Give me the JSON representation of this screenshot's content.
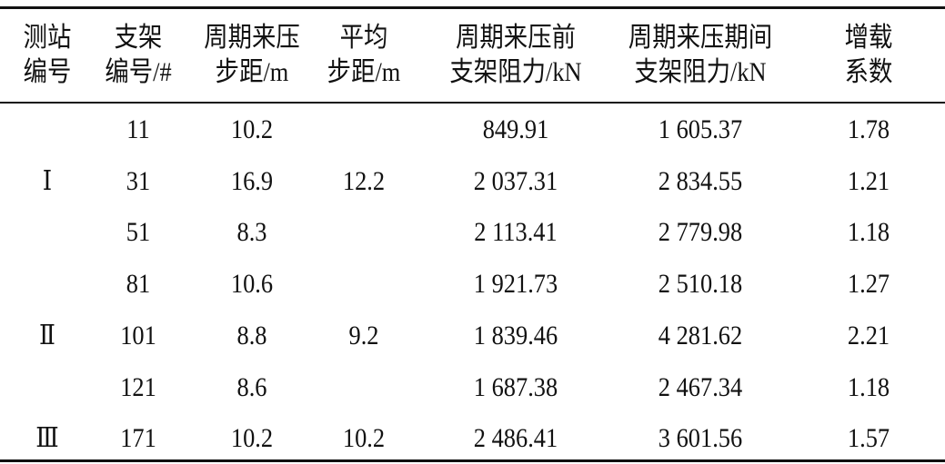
{
  "table": {
    "header": [
      [
        "测站",
        "编号"
      ],
      [
        "支架",
        "编号/#"
      ],
      [
        "周期来压",
        "步距/m"
      ],
      [
        "平均",
        "步距/m"
      ],
      [
        "周期来压前",
        "支架阻力/kN"
      ],
      [
        "周期来压期间",
        "支架阻力/kN"
      ],
      [
        "增载",
        "系数"
      ]
    ],
    "groups": [
      {
        "station": "Ⅰ",
        "average": "12.2",
        "rows": [
          [
            "11",
            "10.2",
            "849.91",
            "1 605.37",
            "1.78"
          ],
          [
            "31",
            "16.9",
            "2 037.31",
            "2 834.55",
            "1.21"
          ],
          [
            "51",
            "8.3",
            "2 113.41",
            "2 779.98",
            "1.18"
          ]
        ]
      },
      {
        "station": "Ⅱ",
        "average": "9.2",
        "rows": [
          [
            "81",
            "10.6",
            "1 921.73",
            "2 510.18",
            "1.27"
          ],
          [
            "101",
            "8.8",
            "1 839.46",
            "4 281.62",
            "2.21"
          ],
          [
            "121",
            "8.6",
            "1 687.38",
            "2 467.34",
            "1.18"
          ]
        ]
      },
      {
        "station": "Ⅲ",
        "average": "10.2",
        "rows": [
          [
            "171",
            "10.2",
            "2 486.41",
            "3 601.56",
            "1.57"
          ]
        ]
      }
    ]
  }
}
